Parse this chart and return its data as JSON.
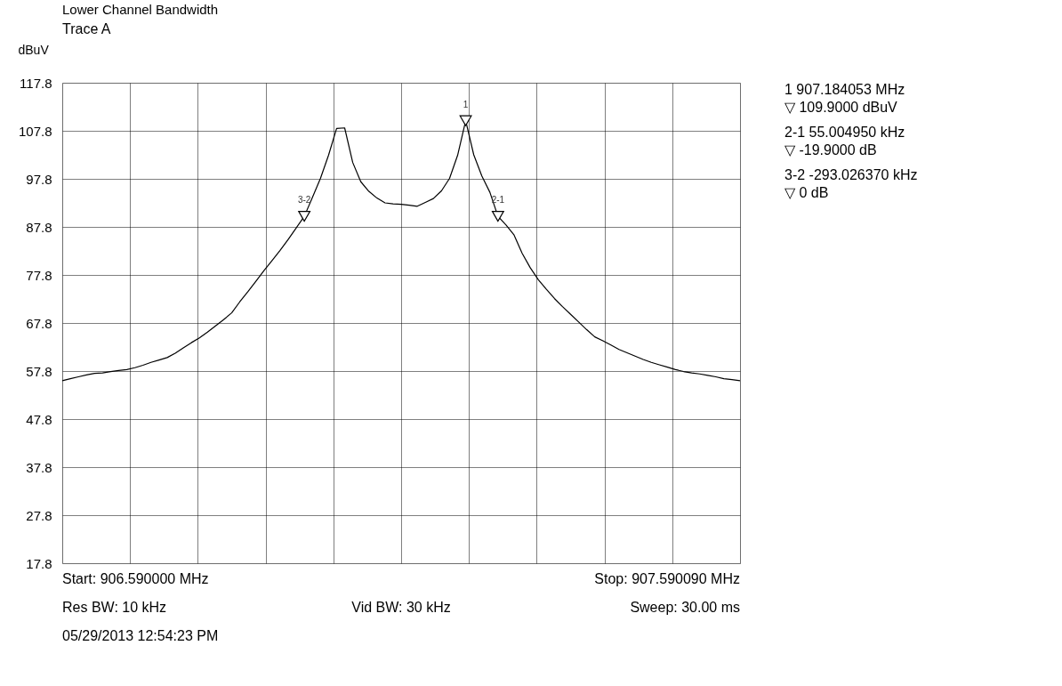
{
  "chart_data": {
    "type": "line",
    "title": "Lower Channel Bandwidth",
    "subtitle": "Trace A",
    "ylabel": "dBuV",
    "categories": [
      null,
      null,
      null,
      null,
      null,
      null,
      null,
      null,
      null,
      null,
      null,
      null,
      null,
      null,
      null,
      null,
      null,
      null,
      null,
      null,
      null,
      null,
      null,
      null,
      null,
      null,
      null,
      null,
      null,
      null,
      null,
      null,
      null,
      null,
      null,
      null,
      null,
      null,
      null,
      null,
      null,
      null,
      null,
      null,
      null,
      null,
      null,
      null,
      null,
      null,
      null,
      null,
      null,
      null,
      null,
      null,
      null,
      null,
      null,
      null,
      null,
      null,
      null,
      null,
      null,
      null,
      null,
      null,
      null,
      null,
      null,
      null,
      null,
      null,
      null,
      null,
      null,
      null,
      null,
      null,
      null,
      null,
      null,
      null,
      null
    ],
    "ylim": [
      17.8,
      117.8
    ],
    "yticks": [
      17.8,
      27.8,
      37.8,
      47.8,
      57.8,
      67.8,
      77.8,
      87.8,
      97.8,
      107.8,
      117.8
    ],
    "tick_labels": "y",
    "grid": true,
    "series": [
      {
        "color": "#000000",
        "values": [
          55.8,
          56.2,
          56.6,
          57.0,
          57.3,
          57.4,
          57.7,
          57.9,
          58.1,
          58.5,
          59.0,
          59.6,
          60.1,
          60.6,
          61.5,
          62.6,
          63.7,
          64.7,
          65.9,
          67.2,
          68.5,
          69.9,
          72.2,
          74.3,
          76.5,
          78.7,
          80.8,
          82.9,
          85.2,
          87.6,
          90.0,
          93.9,
          97.9,
          102.7,
          108.3,
          108.4,
          101.2,
          97.2,
          95.2,
          93.8,
          92.8,
          92.6,
          92.5,
          92.3,
          92.1,
          92.9,
          93.7,
          95.3,
          97.9,
          102.7,
          109.9,
          102.8,
          98.4,
          95.0,
          90.0,
          88.2,
          86.1,
          82.3,
          79.3,
          76.8,
          74.8,
          72.9,
          71.2,
          69.6,
          68.0,
          66.4,
          64.9,
          64.1,
          63.2,
          62.3,
          61.6,
          60.9,
          60.2,
          59.6,
          59.1,
          58.6,
          58.1,
          57.7,
          57.4,
          57.2,
          56.9,
          56.6,
          56.2,
          56.0,
          55.8
        ]
      },
      {
        "type": "scatter",
        "marker": "triangle",
        "color": "#000000",
        "values": [
          null,
          null,
          null,
          null,
          null,
          null,
          null,
          null,
          null,
          null,
          null,
          null,
          null,
          null,
          null,
          null,
          null,
          null,
          null,
          null,
          null,
          null,
          null,
          null,
          null,
          null,
          null,
          null,
          null,
          null,
          90.0,
          null,
          null,
          null,
          null,
          null,
          null,
          null,
          null,
          null,
          null,
          null,
          null,
          null,
          null,
          null,
          null,
          null,
          null,
          null,
          109.9,
          null,
          null,
          null,
          90.0,
          null,
          null,
          null,
          null,
          null,
          null,
          null,
          null,
          null,
          null,
          null,
          null,
          null,
          null,
          null,
          null,
          null,
          null,
          null,
          null,
          null,
          null,
          null,
          null,
          null,
          null,
          null,
          null,
          null,
          null
        ]
      }
    ],
    "annotations": [
      "3-2",
      "1",
      "2-1",
      "1 907.184053 MHz",
      "▽ 109.9000 dBuV",
      "2-1 55.004950 kHz",
      "▽ -19.9000 dB",
      "3-2 -293.026370 kHz",
      "▽ 0 dB",
      "Start: 906.590000 MHz",
      "Stop: 907.590090 MHz",
      "Res BW: 10 kHz",
      "Vid BW: 30 kHz",
      "Sweep: 30.00 ms",
      "05/29/2013 12:54:23 PM"
    ]
  }
}
